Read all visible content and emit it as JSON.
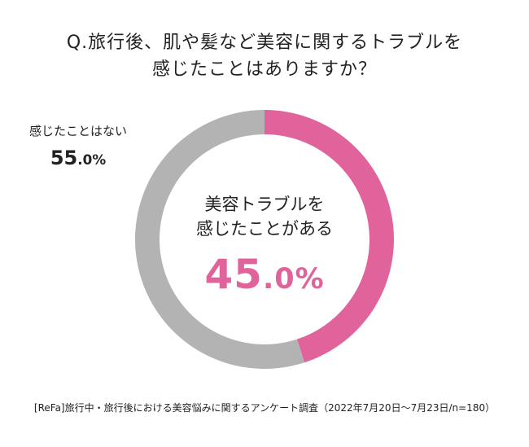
{
  "chart_data": {
    "type": "pie",
    "title": [
      "Q.旅行後、肌や髪など美容に関するトラブルを",
      "感じたことはありますか？"
    ],
    "categories": [
      "美容トラブルを感じたことがある",
      "感じたことはない"
    ],
    "values": [
      45.0,
      55.0
    ],
    "value_labels": [
      {
        "int": "45",
        "dec": ".0%"
      },
      {
        "int": "55",
        "dec": ".0%"
      }
    ],
    "center_label": [
      "美容トラブルを",
      "感じたことがある"
    ],
    "side_label": "感じたことはない",
    "colors": [
      "#e0649b",
      "#b3b3b3"
    ],
    "footnote": "[ReFa]旅行中・旅行後における美容悩みに関するアンケート調査（2022年7月20日～7月23日/n=180）"
  }
}
